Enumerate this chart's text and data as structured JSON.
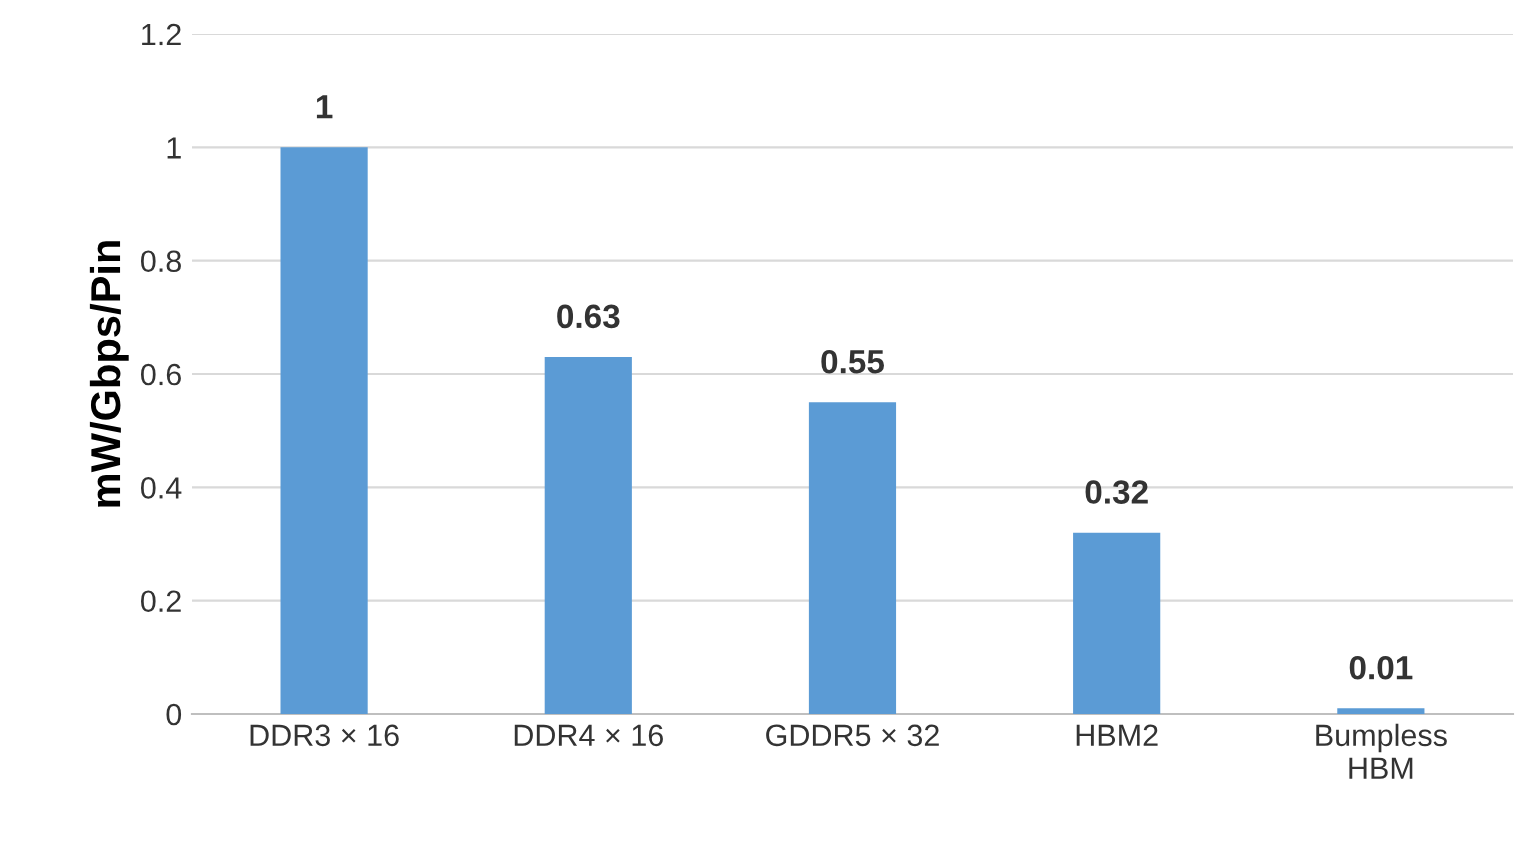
{
  "chart_data": {
    "type": "bar",
    "categories": [
      "DDR3 × 16",
      "DDR4 × 16",
      "GDDR5 × 32",
      "HBM2",
      "Bumpless\nHBM"
    ],
    "values": [
      1,
      0.63,
      0.55,
      0.32,
      0.01
    ],
    "color": "#5b9bd5",
    "ylabel": "mW/Gbps/Pin",
    "ylim": [
      0,
      1.2
    ],
    "yticks": [
      0,
      0.2,
      0.4,
      0.6,
      0.8,
      1,
      1.2
    ],
    "grid": "y",
    "data_labels": true
  }
}
